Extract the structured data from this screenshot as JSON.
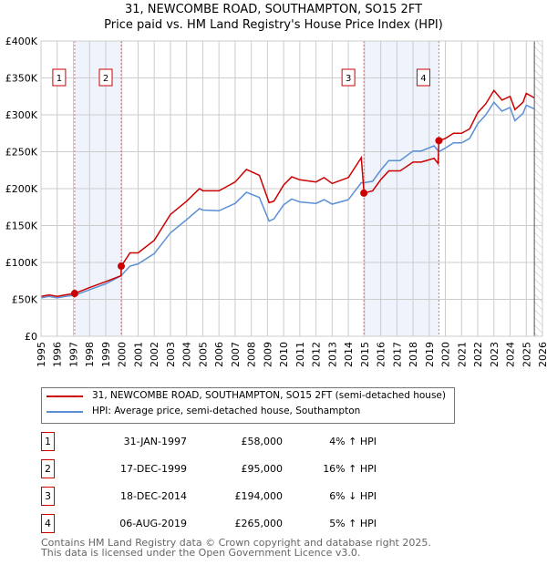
{
  "chart_data": {
    "type": "line",
    "title": "31, NEWCOMBE ROAD, SOUTHAMPTON, SO15 2FT",
    "subtitle": "Price paid vs. HM Land Registry's House Price Index (HPI)",
    "xlim": [
      1995,
      2026
    ],
    "ylim": [
      0,
      400000
    ],
    "yticks": [
      {
        "v": 0,
        "l": "£0"
      },
      {
        "v": 50000,
        "l": "£50K"
      },
      {
        "v": 100000,
        "l": "£100K"
      },
      {
        "v": 150000,
        "l": "£150K"
      },
      {
        "v": 200000,
        "l": "£200K"
      },
      {
        "v": 250000,
        "l": "£250K"
      },
      {
        "v": 300000,
        "l": "£300K"
      },
      {
        "v": 350000,
        "l": "£350K"
      },
      {
        "v": 400000,
        "l": "£400K"
      }
    ],
    "xticks": [
      "1995",
      "1996",
      "1997",
      "1998",
      "1999",
      "2000",
      "2001",
      "2002",
      "2003",
      "2004",
      "2005",
      "2006",
      "2007",
      "2008",
      "2009",
      "2010",
      "2011",
      "2012",
      "2013",
      "2014",
      "2015",
      "2016",
      "2017",
      "2018",
      "2019",
      "2020",
      "2021",
      "2022",
      "2023",
      "2024",
      "2025",
      "2026"
    ],
    "shaded": [
      [
        1997.08,
        1999.96
      ],
      [
        2014.96,
        2019.6
      ]
    ],
    "forecast_from": 2025.5,
    "series": [
      {
        "name": "31, NEWCOMBE ROAD, SOUTHAMPTON, SO15 2FT (semi-detached house)",
        "color": "#cc0000",
        "x": [
          1995,
          1995.5,
          1996,
          1996.5,
          1997.08,
          1998,
          1999,
          1999.95,
          1999.96,
          2000.5,
          2001,
          2002,
          2003,
          2004,
          2004.8,
          2005,
          2006,
          2007,
          2007.7,
          2008.5,
          2009.1,
          2009.4,
          2010,
          2010.5,
          2011,
          2012,
          2012.5,
          2013,
          2014,
          2014.8,
          2014.97,
          2015.5,
          2016,
          2016.5,
          2017.2,
          2018,
          2018.5,
          2019.3,
          2019.55,
          2019.6,
          2020,
          2020.5,
          2021,
          2021.5,
          2022,
          2022.5,
          2023,
          2023.5,
          2024,
          2024.3,
          2024.8,
          2025,
          2025.5
        ],
        "y": [
          54,
          56,
          54,
          56,
          58,
          66,
          74,
          82,
          95,
          113,
          113,
          130,
          165,
          183,
          200,
          197,
          197,
          209,
          226,
          218,
          181,
          183,
          205,
          216,
          212,
          209,
          215,
          207,
          215,
          242,
          194,
          197,
          212,
          224,
          224,
          236,
          236,
          241,
          234,
          265,
          268,
          275,
          275,
          281,
          303,
          315,
          333,
          320,
          325,
          307,
          317,
          329,
          323
        ]
      },
      {
        "name": "HPI: Average price, semi-detached house, Southampton",
        "color": "#5b8fd4",
        "x": [
          1995,
          1995.5,
          1996,
          1996.5,
          1997.08,
          1998,
          1999,
          1999.95,
          2000.5,
          2001,
          2002,
          2003,
          2004,
          2004.8,
          2005,
          2006,
          2007,
          2007.7,
          2008.5,
          2009.1,
          2009.4,
          2010,
          2010.5,
          2011,
          2012,
          2012.5,
          2013,
          2014,
          2014.8,
          2014.97,
          2015.5,
          2016,
          2016.5,
          2017.2,
          2018,
          2018.5,
          2019.3,
          2019.6,
          2020,
          2020.5,
          2021,
          2021.5,
          2022,
          2022.5,
          2023,
          2023.5,
          2024,
          2024.3,
          2024.8,
          2025,
          2025.5
        ],
        "y": [
          52,
          54,
          52,
          54,
          55.5,
          63,
          71,
          82,
          95,
          98,
          112,
          140,
          158,
          173,
          171,
          170,
          180,
          195,
          188,
          156,
          159,
          178,
          186,
          182,
          180,
          185,
          179,
          185,
          208,
          208,
          210,
          225,
          238,
          238,
          251,
          251,
          258,
          250,
          255,
          262,
          262,
          268,
          288,
          300,
          317,
          305,
          310,
          292,
          302,
          313,
          308
        ]
      }
    ],
    "sales": [
      {
        "n": "1",
        "x": 1997.08,
        "y": 58000
      },
      {
        "n": "2",
        "x": 1999.96,
        "y": 95000
      },
      {
        "n": "3",
        "x": 2014.96,
        "y": 194000
      },
      {
        "n": "4",
        "x": 2019.6,
        "y": 265000
      }
    ]
  },
  "legend": {
    "property": "31, NEWCOMBE ROAD, SOUTHAMPTON, SO15 2FT (semi-detached house)",
    "hpi": "HPI: Average price, semi-detached house, Southampton"
  },
  "table": [
    {
      "n": "1",
      "date": "31-JAN-1997",
      "price": "£58,000",
      "hpi": "4% ↑ HPI"
    },
    {
      "n": "2",
      "date": "17-DEC-1999",
      "price": "£95,000",
      "hpi": "16% ↑ HPI"
    },
    {
      "n": "3",
      "date": "18-DEC-2014",
      "price": "£194,000",
      "hpi": "6% ↓ HPI"
    },
    {
      "n": "4",
      "date": "06-AUG-2019",
      "price": "£265,000",
      "hpi": "5% ↑ HPI"
    }
  ],
  "footer": [
    "Contains HM Land Registry data © Crown copyright and database right 2025.",
    "This data is licensed under the Open Government Licence v3.0."
  ]
}
